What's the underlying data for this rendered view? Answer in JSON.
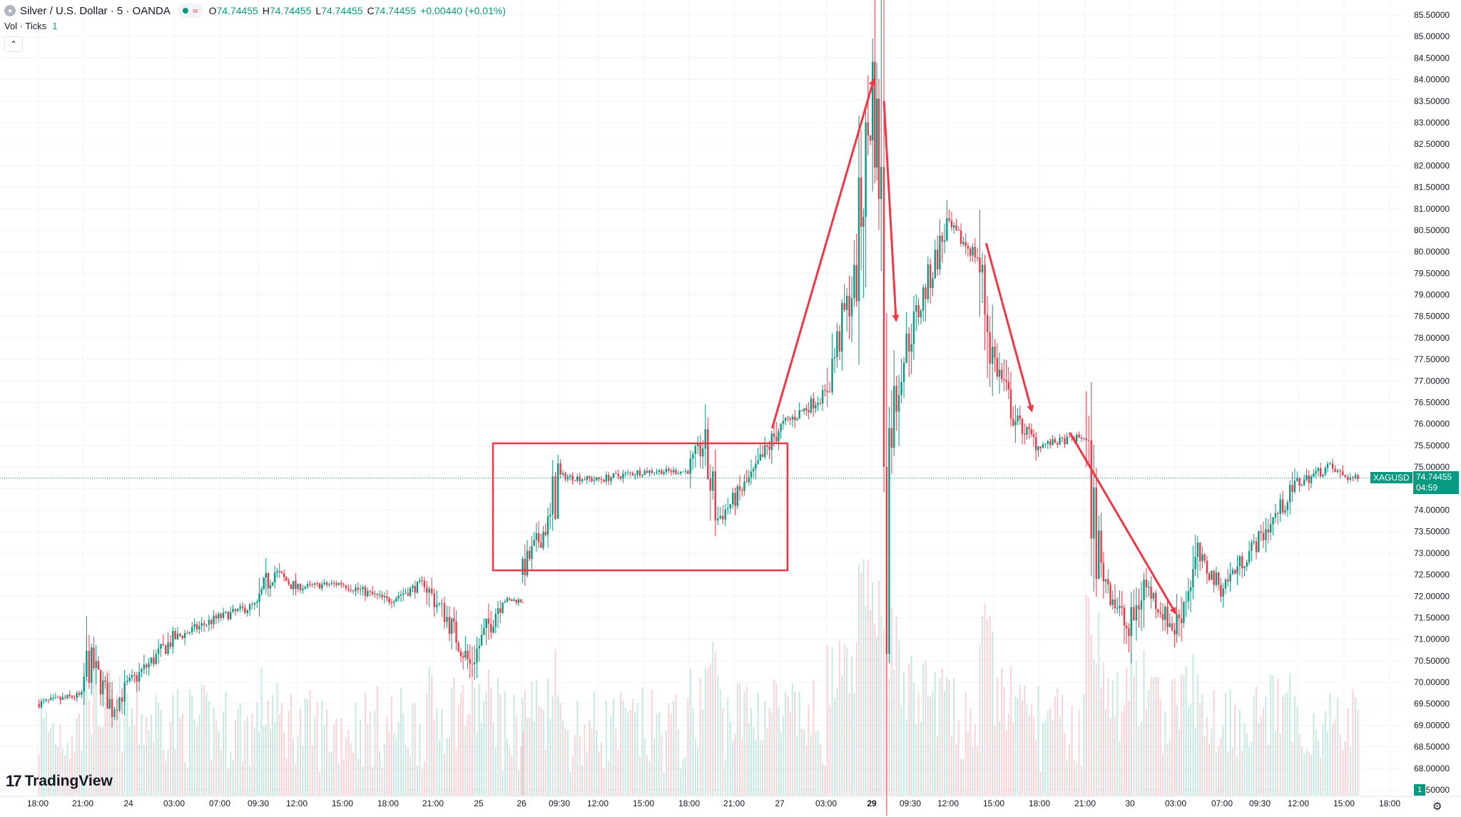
{
  "header": {
    "symbol_title": "Silver / U.S. Dollar · 5 · OANDA",
    "open_label": "O",
    "open": "74.74455",
    "high_label": "H",
    "high": "74.74455",
    "low_label": "L",
    "low": "74.74455",
    "close_label": "C",
    "close": "74.74455",
    "change": "+0.00440 (+0.01%)"
  },
  "volume_indicator": {
    "label": "Vol · Ticks",
    "value": "1"
  },
  "branding": {
    "logo_text": "TradingView",
    "logo_mark": "17"
  },
  "last_price": {
    "symbol": "XAGUSD",
    "price": "74.74455",
    "countdown": "04:59"
  },
  "volume_tag": "1",
  "colors": {
    "up": "#089981",
    "down": "#f23645",
    "annotation": "#f23645",
    "grid": "#f0f3fa"
  },
  "chart_data": {
    "type": "candlestick",
    "ylim": [
      67.5,
      85.5
    ],
    "y_ticks": [
      "85.50000",
      "85.00000",
      "84.50000",
      "84.00000",
      "83.50000",
      "83.00000",
      "82.50000",
      "82.00000",
      "81.50000",
      "81.00000",
      "80.50000",
      "80.00000",
      "79.50000",
      "79.00000",
      "78.50000",
      "78.00000",
      "77.50000",
      "77.00000",
      "76.50000",
      "76.00000",
      "75.50000",
      "75.00000",
      "74.50000",
      "74.00000",
      "73.50000",
      "73.00000",
      "72.50000",
      "72.00000",
      "71.50000",
      "71.00000",
      "70.50000",
      "70.00000",
      "69.50000",
      "69.00000",
      "68.50000",
      "68.00000",
      "67.50000"
    ],
    "x_ticks": [
      "18:00",
      "21:00",
      "24",
      "03:00",
      "07:00",
      "09:30",
      "12:00",
      "15:00",
      "18:00",
      "21:00",
      "25",
      "26",
      "09:30",
      "12:00",
      "15:00",
      "18:00",
      "21:00",
      "27",
      "03:00",
      "29",
      "09:30",
      "12:00",
      "15:00",
      "18:00",
      "21:00",
      "30",
      "03:00",
      "07:00",
      "09:30",
      "12:00",
      "15:00",
      "18:00"
    ],
    "bold_x_ticks": [
      "29"
    ],
    "price_path": [
      {
        "x": "23 18:00",
        "y": 69.5
      },
      {
        "x": "23 21:00",
        "y": 69.7
      },
      {
        "x": "23 21:30",
        "y": 70.6
      },
      {
        "x": "23 23:00",
        "y": 69.4
      },
      {
        "x": "24 00:00",
        "y": 69.9
      },
      {
        "x": "24 03:00",
        "y": 71.0
      },
      {
        "x": "24 07:00",
        "y": 71.5
      },
      {
        "x": "24 09:30",
        "y": 71.8
      },
      {
        "x": "24 10:30",
        "y": 72.6
      },
      {
        "x": "24 12:00",
        "y": 72.2
      },
      {
        "x": "24 15:00",
        "y": 72.3
      },
      {
        "x": "24 18:00",
        "y": 71.9
      },
      {
        "x": "24 20:30",
        "y": 72.3
      },
      {
        "x": "24 21:00",
        "y": 72.0
      },
      {
        "x": "24 22:00",
        "y": 71.5
      },
      {
        "x": "24 23:30",
        "y": 70.4
      },
      {
        "x": "25 01:30",
        "y": 71.9
      },
      {
        "x": "25 03:00",
        "y": 71.9
      },
      {
        "x": "26 00:00",
        "y": 72.5
      },
      {
        "x": "26 07:30",
        "y": 73.8
      },
      {
        "x": "26 09:30",
        "y": 74.8
      },
      {
        "x": "26 12:00",
        "y": 74.7
      },
      {
        "x": "26 15:00",
        "y": 74.9
      },
      {
        "x": "26 18:00",
        "y": 74.9
      },
      {
        "x": "26 19:00",
        "y": 75.5
      },
      {
        "x": "26 20:00",
        "y": 73.8
      },
      {
        "x": "26 21:00",
        "y": 74.2
      },
      {
        "x": "26 22:30",
        "y": 74.9
      },
      {
        "x": "27 00:00",
        "y": 75.9
      },
      {
        "x": "27 03:00",
        "y": 76.7
      },
      {
        "x": "27 05:00",
        "y": 77.6
      },
      {
        "x": "27 07:00",
        "y": 78.5
      },
      {
        "x": "27 09:00",
        "y": 79.3
      },
      {
        "x": "29 00:30",
        "y": 83.9
      },
      {
        "x": "29 02:00",
        "y": 82.0
      },
      {
        "x": "29 04:00",
        "y": 75.3
      },
      {
        "x": "29 07:00",
        "y": 77.2
      },
      {
        "x": "29 09:30",
        "y": 78.0
      },
      {
        "x": "29 12:00",
        "y": 80.6
      },
      {
        "x": "29 14:00",
        "y": 79.9
      },
      {
        "x": "29 15:00",
        "y": 77.6
      },
      {
        "x": "29 16:30",
        "y": 76.1
      },
      {
        "x": "29 18:00",
        "y": 75.5
      },
      {
        "x": "29 21:00",
        "y": 75.7
      },
      {
        "x": "29 22:00",
        "y": 72.8
      },
      {
        "x": "30 00:00",
        "y": 71.1
      },
      {
        "x": "30 01:00",
        "y": 72.3
      },
      {
        "x": "30 03:00",
        "y": 71.2
      },
      {
        "x": "30 05:00",
        "y": 72.9
      },
      {
        "x": "30 07:00",
        "y": 72.2
      },
      {
        "x": "30 09:30",
        "y": 73.3
      },
      {
        "x": "30 12:00",
        "y": 74.6
      },
      {
        "x": "30 14:00",
        "y": 75.0
      },
      {
        "x": "30 15:00",
        "y": 74.8
      },
      {
        "x": "30 16:00",
        "y": 74.7
      }
    ],
    "last_price": 74.74455,
    "annotations": [
      {
        "type": "rectangle",
        "x": [
          "26 00:00",
          "27 00:30"
        ],
        "y": [
          72.6,
          75.55
        ]
      },
      {
        "type": "arrow",
        "from": {
          "x": "26 23:30",
          "y": 75.9
        },
        "to": {
          "x": "29 00:30",
          "y": 84.0
        }
      },
      {
        "type": "arrow",
        "from": {
          "x": "29 03:00",
          "y": 83.5
        },
        "to": {
          "x": "29 06:00",
          "y": 78.4
        }
      },
      {
        "type": "arrow",
        "from": {
          "x": "29 14:30",
          "y": 80.2
        },
        "to": {
          "x": "29 17:30",
          "y": 76.3
        }
      },
      {
        "type": "arrow",
        "from": {
          "x": "29 20:00",
          "y": 75.8
        },
        "to": {
          "x": "30 03:00",
          "y": 71.6
        }
      }
    ],
    "grid": true,
    "volume": true
  }
}
